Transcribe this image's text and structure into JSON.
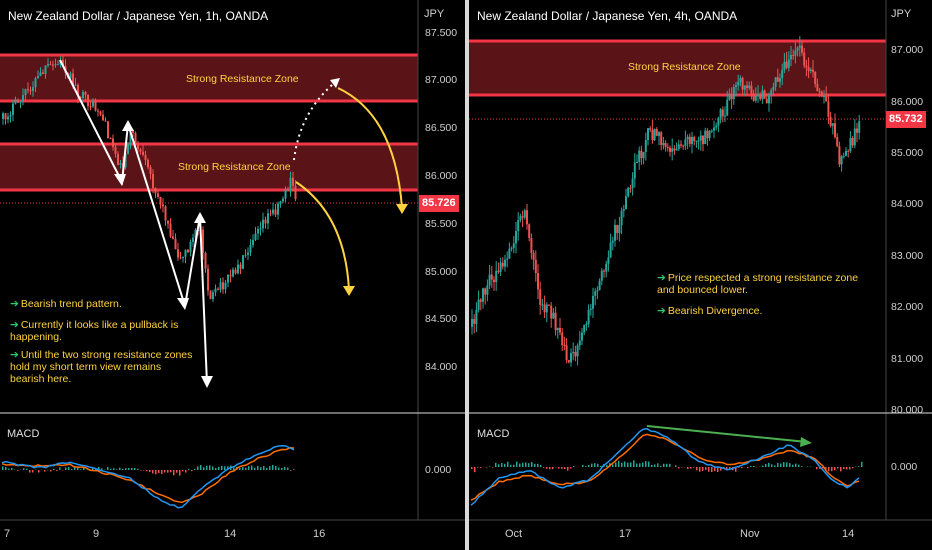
{
  "left": {
    "title": "New Zealand Dollar / Japanese Yen, 1h, OANDA",
    "currency": "JPY",
    "y_ticks": [
      "87.500",
      "87.000",
      "86.500",
      "86.000",
      "85.500",
      "85.000",
      "84.500",
      "84.000"
    ],
    "x_ticks": [
      "7",
      "9",
      "14",
      "16"
    ],
    "last_price": "85.726",
    "zone_label_1": "Strong Resistance Zone",
    "zone_label_2": "Strong Resistance Zone",
    "notes": [
      "Bearish trend pattern.",
      "Currently it looks like a pullback is happening.",
      "Until the two strong resistance zones hold my short term view remains bearish here."
    ],
    "macd_label": "MACD",
    "macd_zero": "0.000"
  },
  "right": {
    "title": "New Zealand Dollar / Japanese Yen, 4h, OANDA",
    "currency": "JPY",
    "y_ticks": [
      "87.000",
      "86.000",
      "85.000",
      "84.000",
      "83.000",
      "82.000",
      "81.000",
      "80.000"
    ],
    "x_ticks": [
      "Oct",
      "17",
      "Nov",
      "14"
    ],
    "last_price": "85.732",
    "zone_label": "Strong Resistance Zone",
    "notes": [
      "Price respected a strong resistance zone and bounced lower.",
      "Bearish Divergence."
    ],
    "macd_label": "MACD",
    "macd_zero": "0.000"
  },
  "colors": {
    "zone_fill": "#5a1418",
    "zone_border": "#f23645",
    "bull": "#26a69a",
    "bear": "#ef5350",
    "macd": "#2196f3",
    "signal": "#ff6d00",
    "annotation": "#ffd23f",
    "divergence": "#4caf50"
  }
}
